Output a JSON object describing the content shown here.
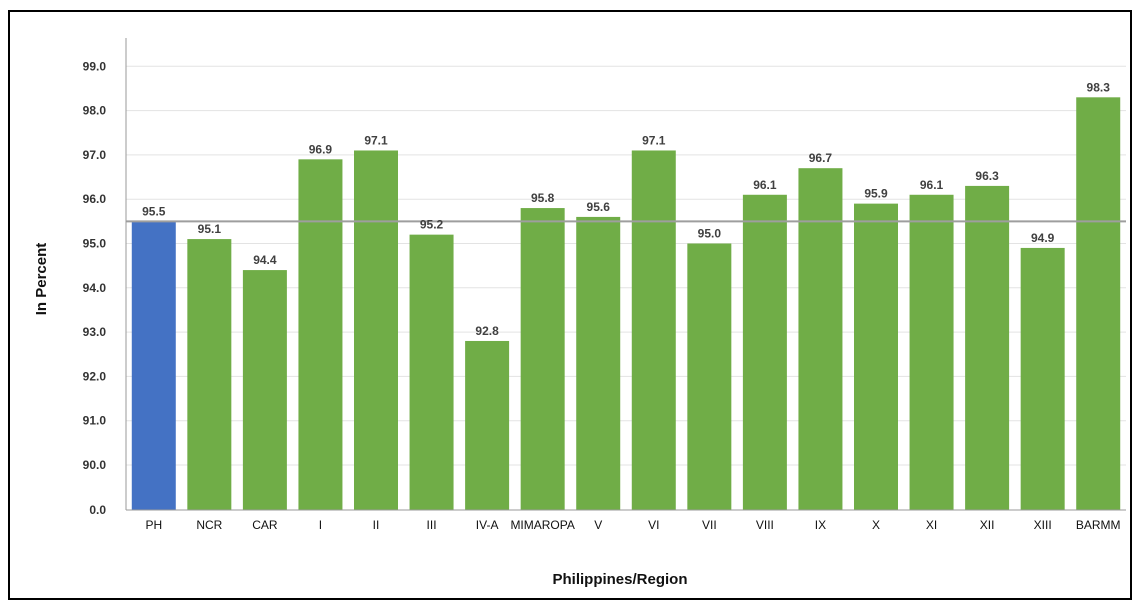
{
  "chart_data": {
    "type": "bar",
    "xlabel": "Philippines/Region",
    "ylabel": "In Percent",
    "y_ticks": [
      "0.0",
      "90.0",
      "91.0",
      "92.0",
      "93.0",
      "94.0",
      "95.0",
      "96.0",
      "97.0",
      "98.0",
      "99.0"
    ],
    "ylim": [
      89,
      99.3
    ],
    "axis_break": "0.0 to 90.0 compressed",
    "grid": "horizontal",
    "reference_line": {
      "value": 95.5,
      "color": "#9E9E9E"
    },
    "categories": [
      "PH",
      "NCR",
      "CAR",
      "I",
      "II",
      "III",
      "IV-A",
      "MIMAROPA",
      "V",
      "VI",
      "VII",
      "VIII",
      "IX",
      "X",
      "XI",
      "XII",
      "XIII",
      "BARMM"
    ],
    "values": [
      95.5,
      95.1,
      94.4,
      96.9,
      97.1,
      95.2,
      92.8,
      95.8,
      95.6,
      97.1,
      95.0,
      96.1,
      96.7,
      95.9,
      96.1,
      96.3,
      94.9,
      98.3
    ],
    "value_labels": [
      "95.5",
      "95.1",
      "94.4",
      "96.9",
      "97.1",
      "95.2",
      "92.8",
      "95.8",
      "95.6",
      "97.1",
      "95.0",
      "96.1",
      "96.7",
      "95.9",
      "96.1",
      "96.3",
      "94.9",
      "98.3"
    ],
    "bar_colors": {
      "PH": "#4472C4",
      "default": "#70AD47"
    }
  }
}
